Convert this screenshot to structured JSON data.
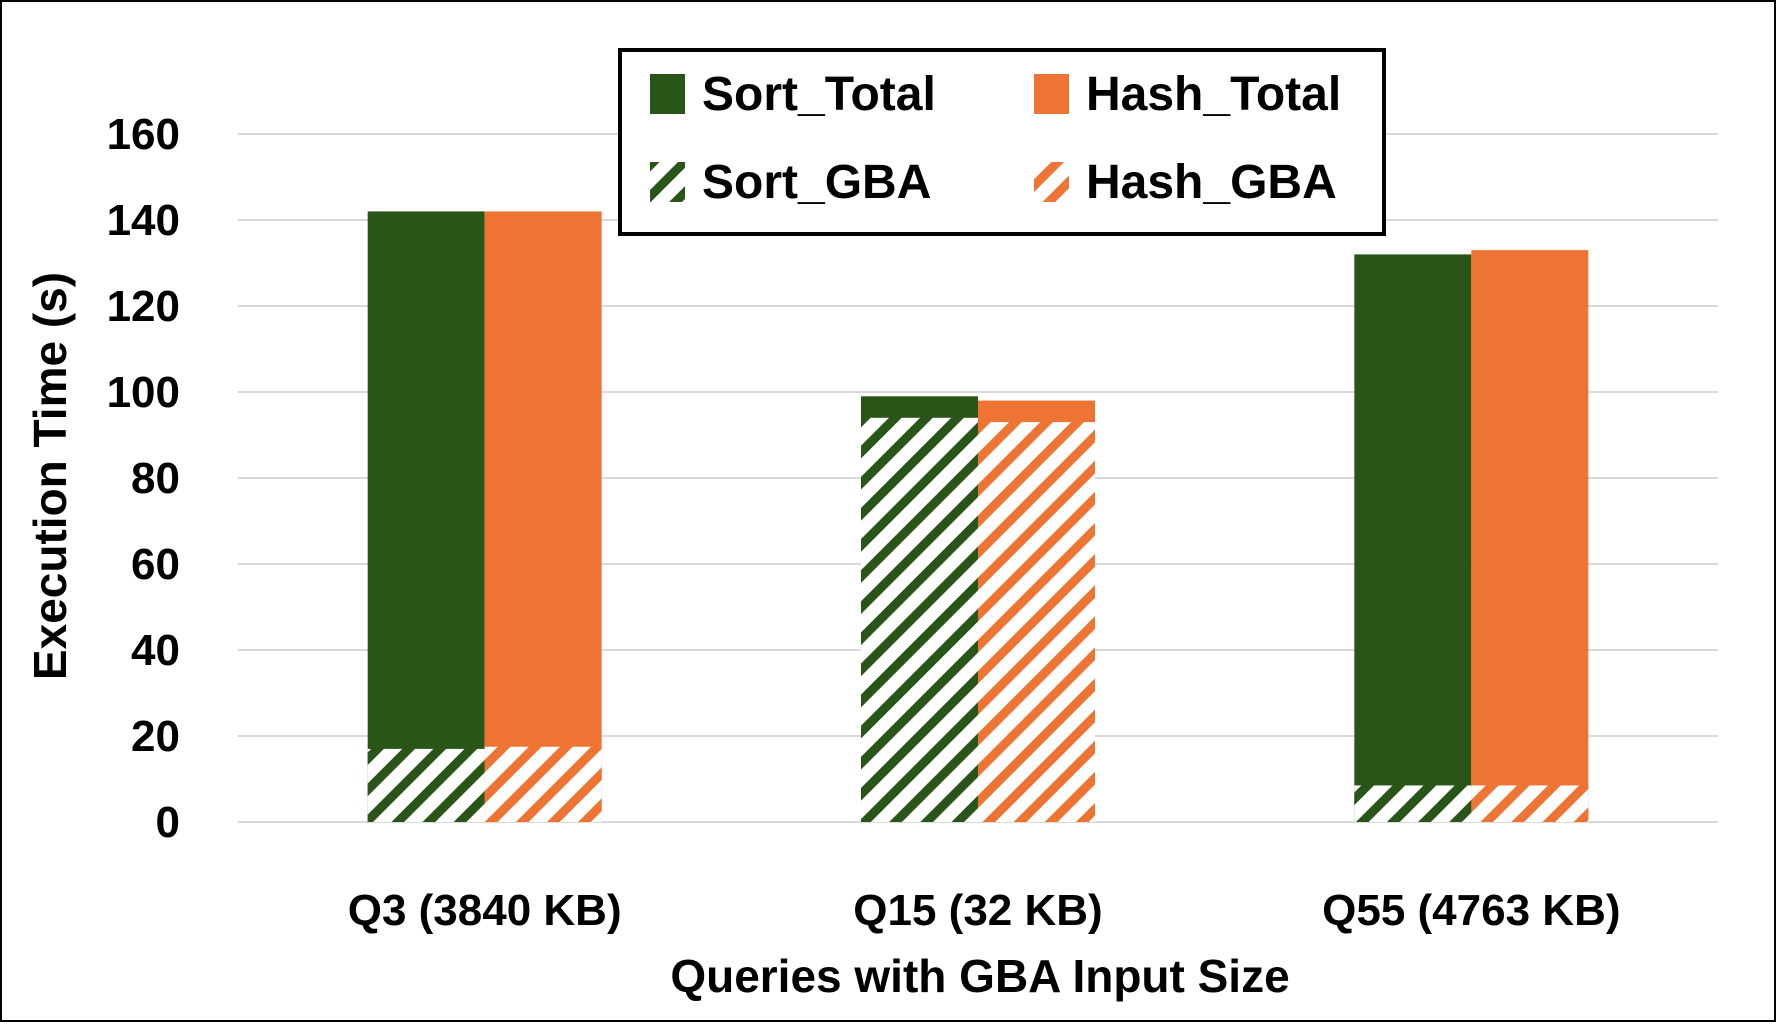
{
  "chart_data": {
    "type": "bar",
    "title": "",
    "xlabel": "Queries with GBA Input Size",
    "ylabel": "Execution Time (s)",
    "categories": [
      "Q3 (3840 KB)",
      "Q15 (32 KB)",
      "Q55 (4763 KB)"
    ],
    "series": [
      {
        "name": "Sort_Total",
        "values": [
          142,
          99,
          132
        ],
        "color": "#2a5519",
        "pattern": "solid"
      },
      {
        "name": "Hash_Total",
        "values": [
          142,
          98,
          133
        ],
        "color": "#ed7433",
        "pattern": "solid"
      },
      {
        "name": "Sort_GBA",
        "values": [
          17,
          94,
          8.5
        ],
        "color": "#2a5519",
        "pattern": "hatched"
      },
      {
        "name": "Hash_GBA",
        "values": [
          17.5,
          93,
          8.5
        ],
        "color": "#ed7433",
        "pattern": "hatched"
      }
    ],
    "yticks": [
      0,
      20,
      40,
      60,
      80,
      100,
      120,
      140,
      160
    ],
    "ylim": [
      0,
      160
    ],
    "grid": true,
    "legend_position": "top-center"
  }
}
